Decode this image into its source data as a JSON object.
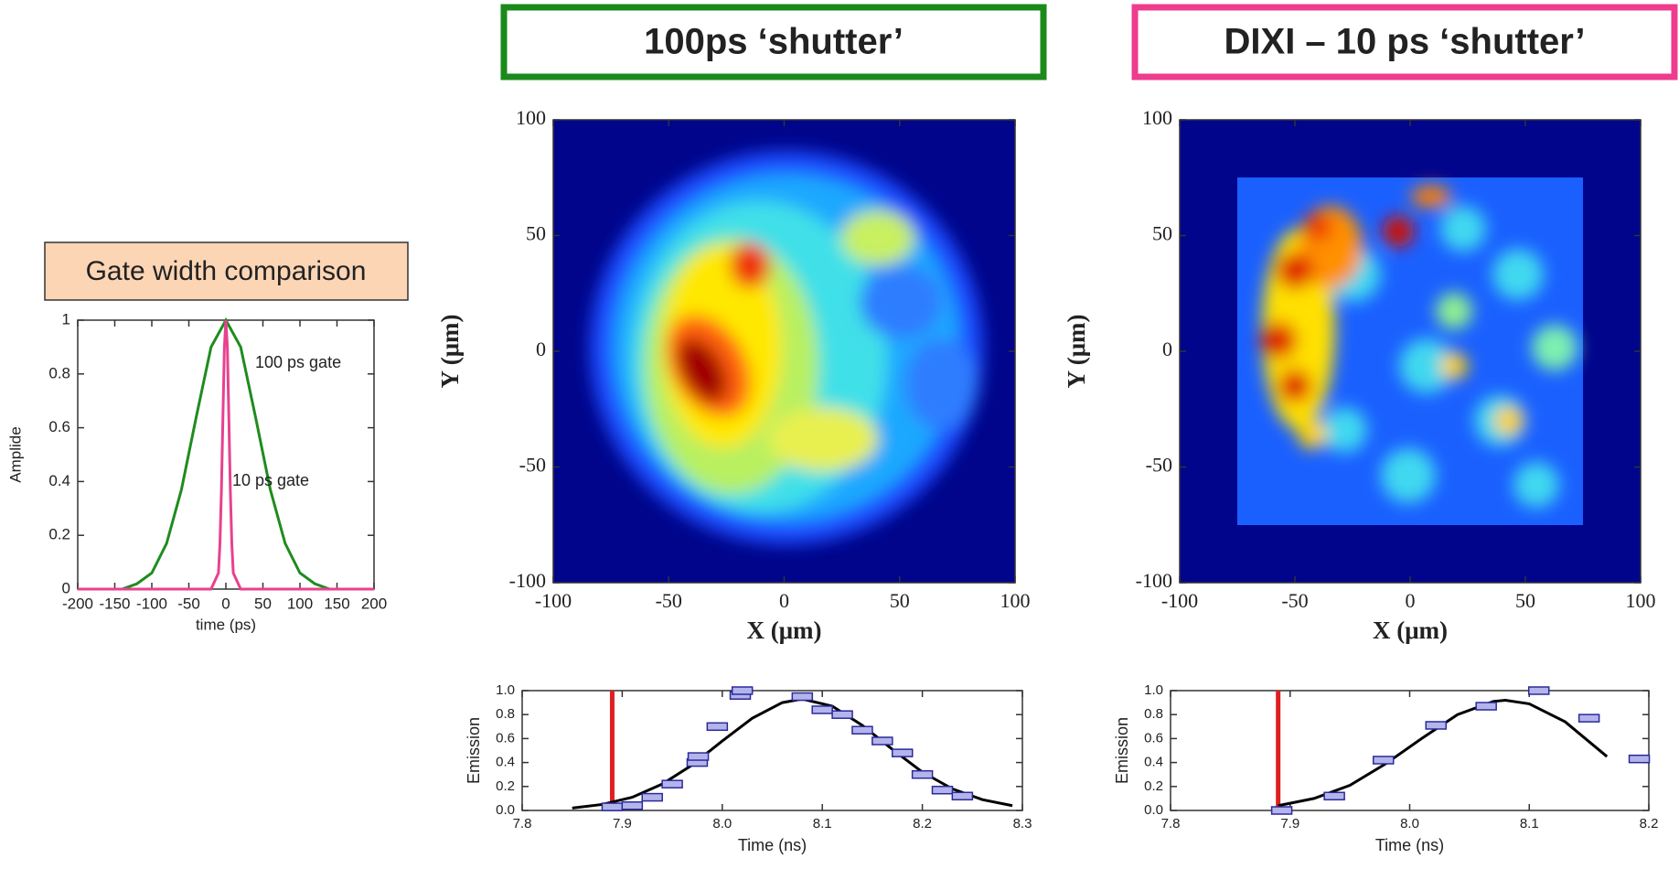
{
  "chart_data": [
    {
      "type": "line",
      "title": "Gate width comparison",
      "title_box_color": "#fcd5b5",
      "xlabel": "time (ps)",
      "ylabel": "Amplide",
      "xlim": [
        -200,
        200
      ],
      "xticks": [
        -200,
        -150,
        -100,
        -50,
        0,
        50,
        100,
        150,
        200
      ],
      "ylim": [
        0,
        1
      ],
      "yticks": [
        0,
        0.2,
        0.4,
        0.6,
        0.8,
        1
      ],
      "series": [
        {
          "name": "100 ps gate",
          "color": "#1e8c1e",
          "x": [
            -200,
            -180,
            -160,
            -140,
            -120,
            -100,
            -80,
            -60,
            -40,
            -20,
            0,
            20,
            40,
            60,
            80,
            100,
            120,
            140,
            160,
            180,
            200
          ],
          "values": [
            0,
            0,
            0,
            0,
            0.02,
            0.06,
            0.17,
            0.37,
            0.64,
            0.9,
            1,
            0.9,
            0.64,
            0.37,
            0.17,
            0.06,
            0.02,
            0,
            0,
            0,
            0
          ]
        },
        {
          "name": "10 ps gate",
          "color": "#e8418f",
          "x": [
            -200,
            -20,
            -10,
            -8,
            -6,
            -4,
            -2,
            0,
            2,
            4,
            6,
            8,
            10,
            20,
            200
          ],
          "values": [
            0,
            0,
            0.06,
            0.17,
            0.37,
            0.64,
            0.9,
            1,
            0.9,
            0.64,
            0.37,
            0.17,
            0.06,
            0,
            0
          ]
        }
      ]
    },
    {
      "type": "heatmap",
      "title": "100ps ‘shutter’",
      "frame_color": "#1a8a1a",
      "xlabel": "X (μm)",
      "ylabel": "Y (μm)",
      "xlim": [
        -100,
        100
      ],
      "xticks": [
        -100,
        -50,
        0,
        50,
        100
      ],
      "ylim": [
        -100,
        100
      ],
      "yticks": [
        -100,
        -50,
        0,
        50,
        100
      ]
    },
    {
      "type": "heatmap",
      "title": "DIXI – 10 ps ‘shutter’",
      "frame_color": "#ee3c8e",
      "xlabel": "X (μm)",
      "ylabel": "Y (μm)",
      "xlim": [
        -100,
        100
      ],
      "xticks": [
        -100,
        -50,
        0,
        50,
        100
      ],
      "ylim": [
        -100,
        100
      ],
      "yticks": [
        -100,
        -50,
        0,
        50,
        100
      ]
    },
    {
      "type": "scatter",
      "xlabel": "Time (ns)",
      "ylabel": "Emission",
      "xlim": [
        7.8,
        8.3
      ],
      "xticks": [
        7.8,
        7.9,
        {
          "value": 8,
          "label": "8.0"
        },
        8.1,
        8.2,
        8.3
      ],
      "ylim": [
        0,
        1
      ],
      "yticks": [
        {
          "value": 0,
          "label": "0.0"
        },
        0.2,
        0.4,
        0.6,
        0.8,
        {
          "value": 1,
          "label": "1.0"
        }
      ],
      "points": {
        "color": "#b4b4ec",
        "x": [
          7.89,
          7.91,
          7.93,
          7.95,
          7.975,
          7.976,
          7.995,
          8.018,
          8.02,
          8.08,
          8.1,
          8.12,
          8.14,
          8.16,
          8.18,
          8.2,
          8.22,
          8.24
        ],
        "values": [
          0.03,
          0.04,
          0.11,
          0.22,
          0.4,
          0.45,
          0.7,
          0.96,
          1,
          0.95,
          0.84,
          0.8,
          0.67,
          0.58,
          0.48,
          0.3,
          0.17,
          0.12
        ]
      },
      "curve": {
        "color": "#000000",
        "x": [
          7.85,
          7.88,
          7.91,
          7.94,
          7.97,
          8.0,
          8.03,
          8.06,
          8.08,
          8.11,
          8.14,
          8.17,
          8.2,
          8.23,
          8.26,
          8.29
        ],
        "values": [
          0.02,
          0.05,
          0.11,
          0.22,
          0.38,
          0.58,
          0.77,
          0.9,
          0.93,
          0.87,
          0.71,
          0.51,
          0.32,
          0.18,
          0.09,
          0.04
        ]
      },
      "vline": {
        "x": 7.89,
        "color": "#e02020"
      }
    },
    {
      "type": "scatter",
      "xlabel": "Time (ns)",
      "ylabel": "Emission",
      "xlim": [
        7.8,
        8.2
      ],
      "xticks": [
        7.8,
        7.9,
        {
          "value": 8,
          "label": "8.0"
        },
        8.1,
        8.2
      ],
      "ylim": [
        0,
        1
      ],
      "yticks": [
        {
          "value": 0,
          "label": "0.0"
        },
        0.2,
        0.4,
        0.6,
        0.8,
        {
          "value": 1,
          "label": "1.0"
        }
      ],
      "points": {
        "color": "#b4b4ec",
        "x": [
          7.893,
          7.937,
          7.978,
          8.022,
          8.064,
          8.108,
          8.15,
          8.192
        ],
        "values": [
          0,
          0.12,
          0.42,
          0.71,
          0.87,
          1,
          0.77,
          0.43
        ]
      },
      "curve": {
        "color": "#000000",
        "x": [
          7.89,
          7.92,
          7.95,
          7.98,
          8.01,
          8.04,
          8.07,
          8.08,
          8.1,
          8.13,
          8.165
        ],
        "values": [
          0.04,
          0.1,
          0.21,
          0.39,
          0.6,
          0.8,
          0.91,
          0.92,
          0.89,
          0.74,
          0.45
        ]
      },
      "vline": {
        "x": 7.89,
        "color": "#e02020"
      }
    }
  ]
}
